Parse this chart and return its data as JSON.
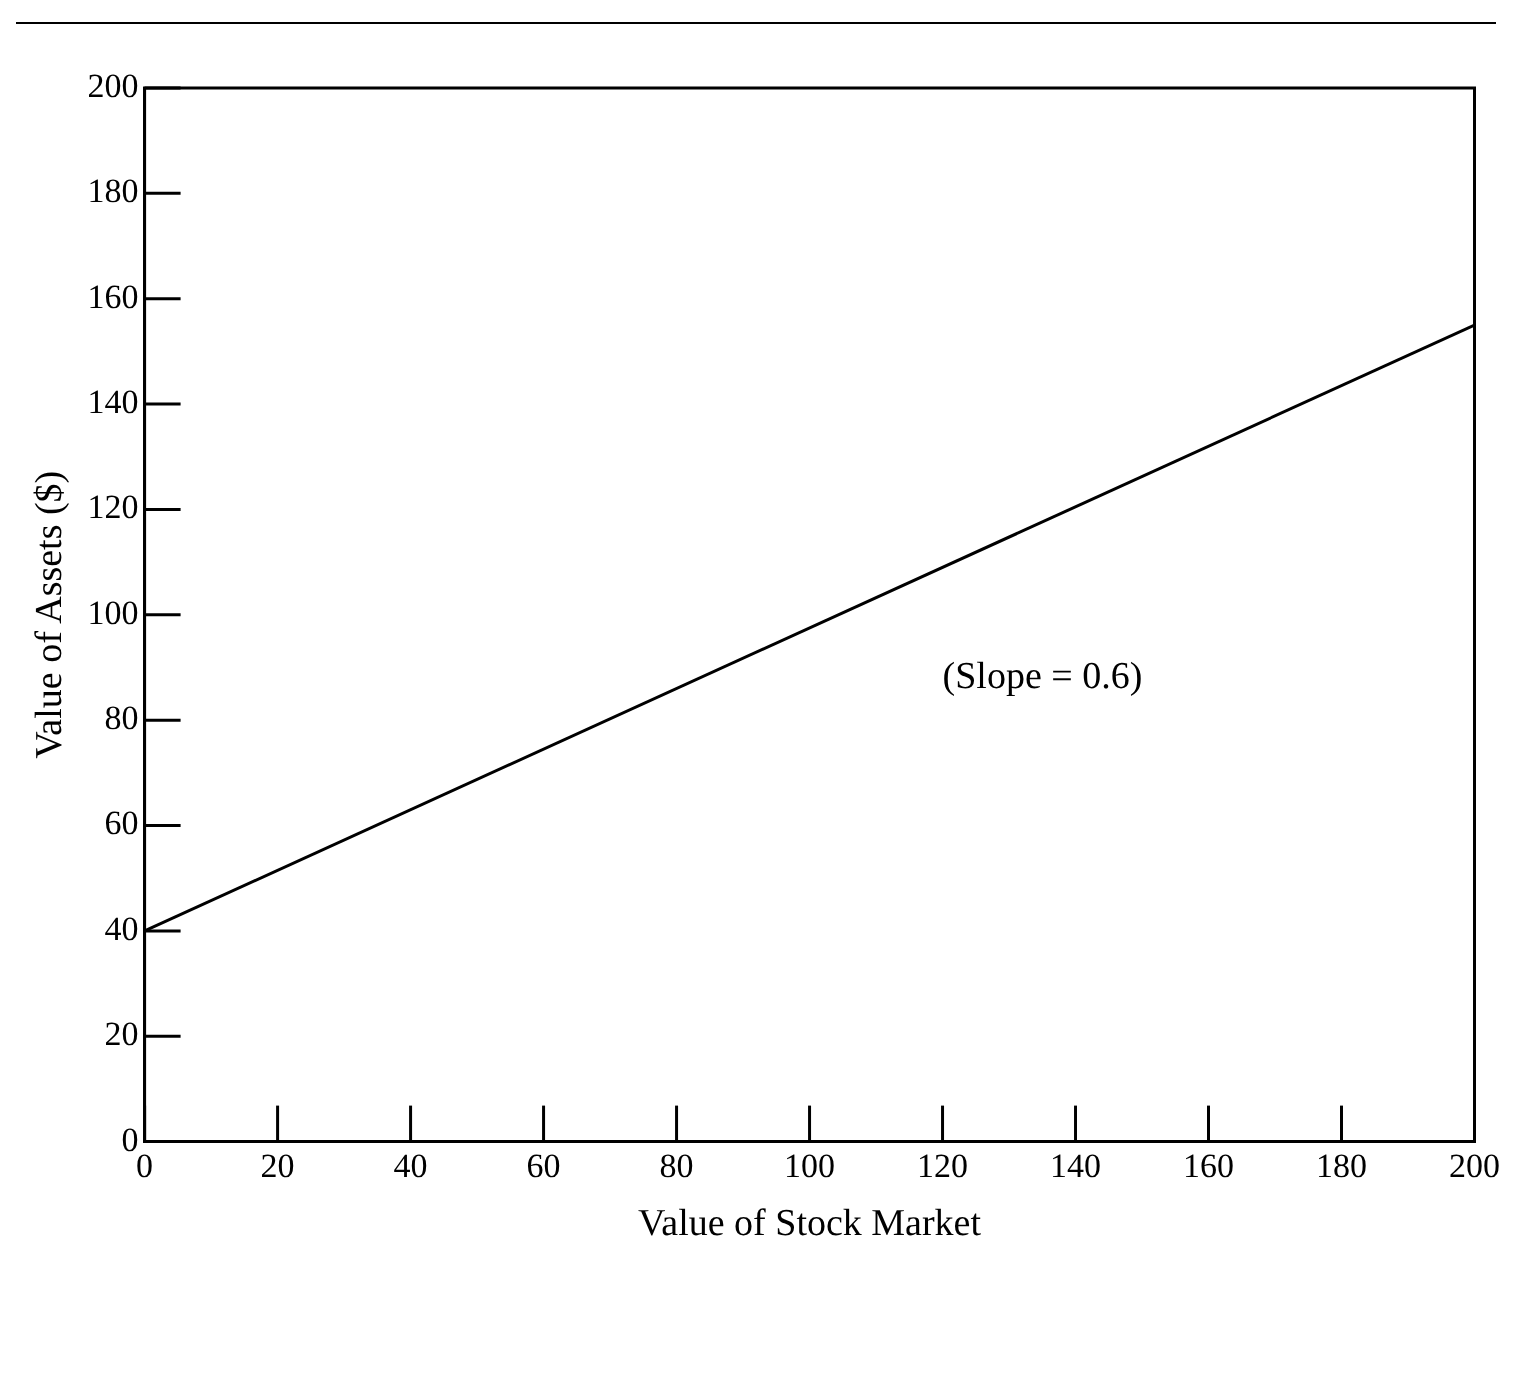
{
  "chart_data": {
    "type": "line",
    "xlabel": "Value of Stock Market",
    "ylabel": "Value of Assets ($)",
    "x": [
      0,
      200
    ],
    "series": [
      {
        "color": "#000000",
        "values": [
          40,
          155
        ]
      }
    ],
    "xlim": [
      0,
      200
    ],
    "ylim": [
      0,
      200
    ],
    "xticks": [
      0,
      20,
      40,
      60,
      80,
      100,
      120,
      140,
      160,
      180,
      200
    ],
    "yticks": [
      0,
      20,
      40,
      60,
      80,
      100,
      120,
      140,
      160,
      180,
      200
    ],
    "grid": false,
    "marker": "none",
    "line_style": "solid",
    "legend": false,
    "annotations": [
      "(Slope = 0.6)"
    ]
  }
}
